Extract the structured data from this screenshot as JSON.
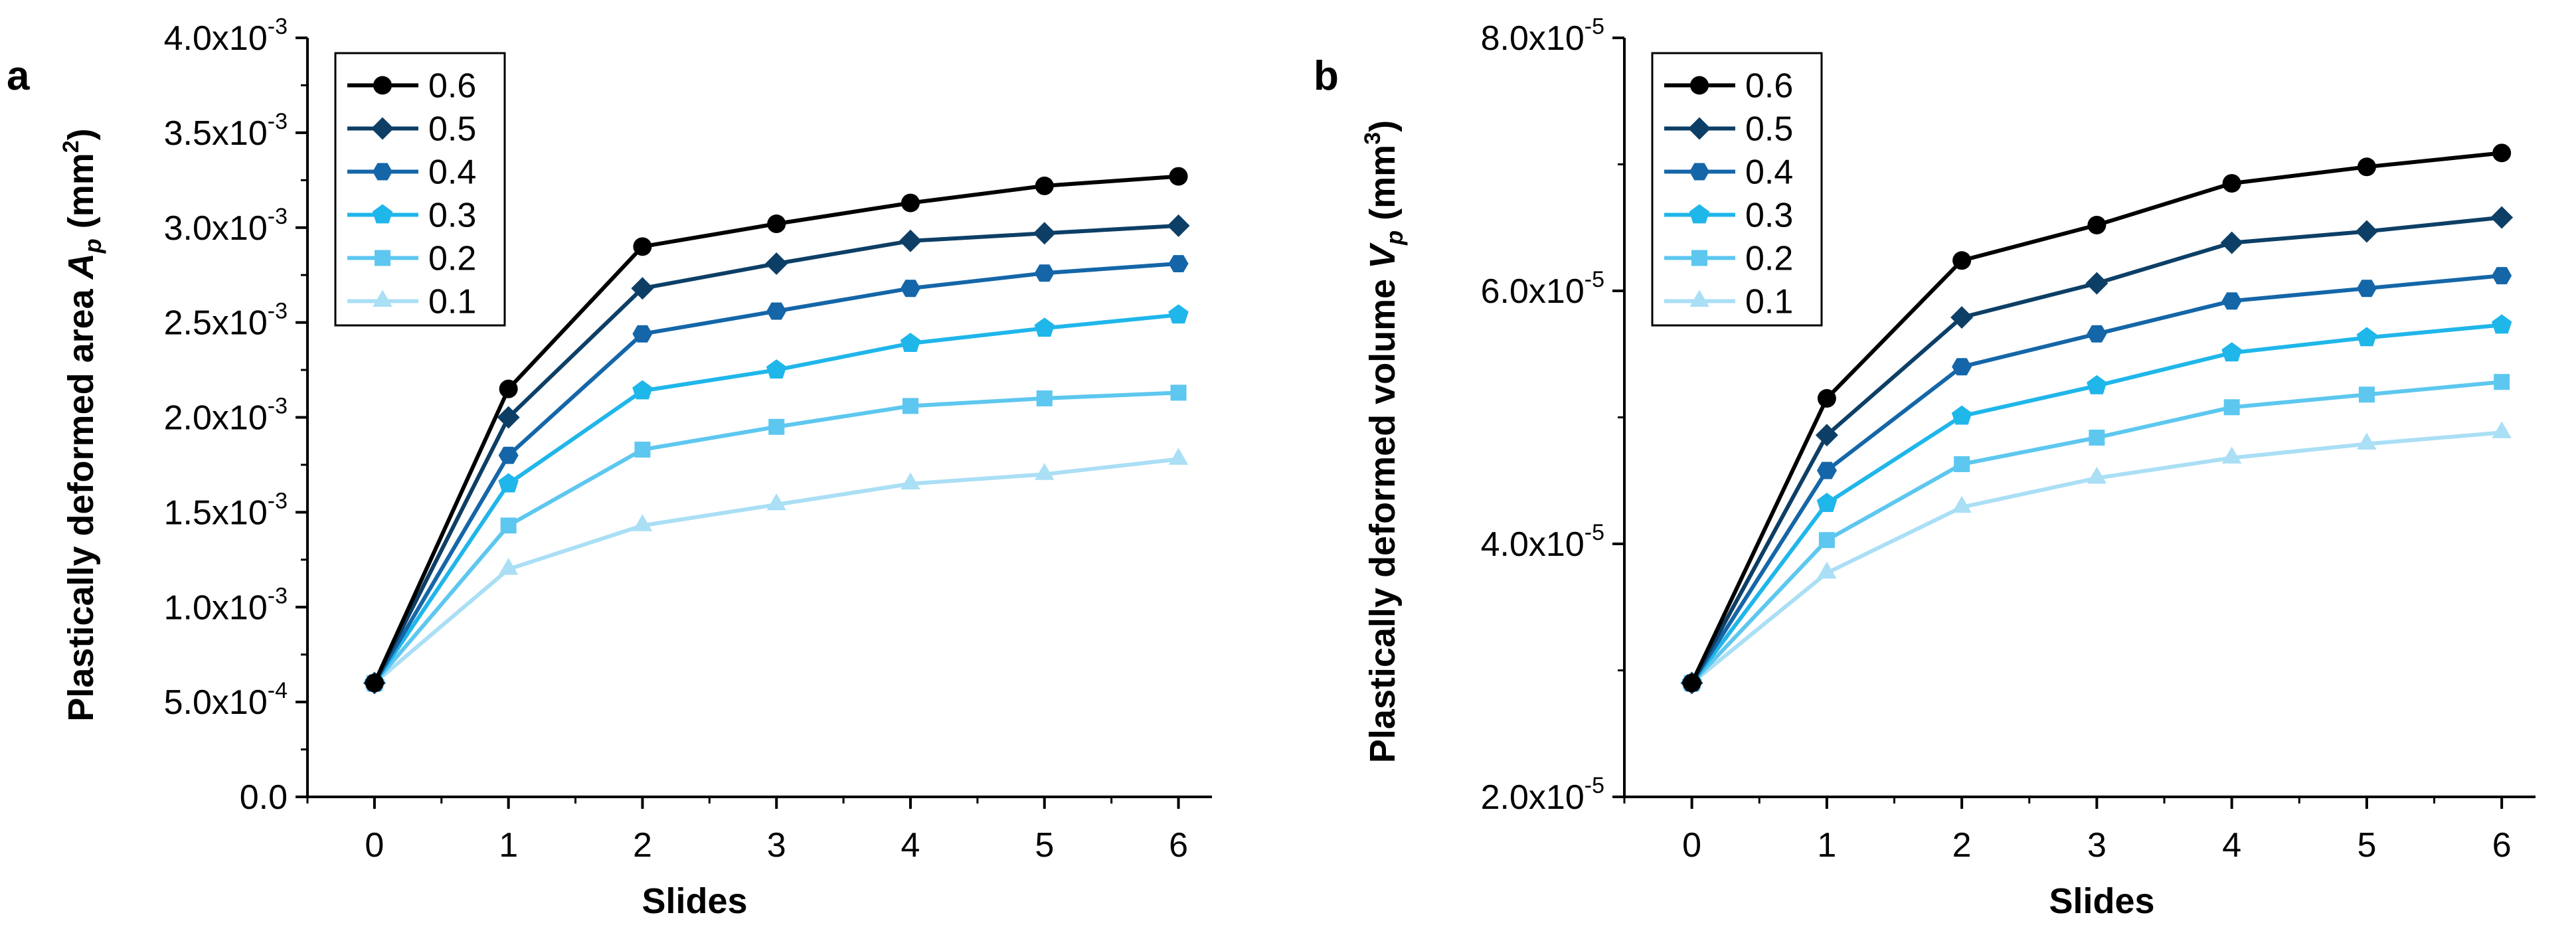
{
  "chart_data": [
    {
      "type": "line",
      "panel_label": "a",
      "xlabel": "Slides",
      "ylabel": {
        "prefix": "Plastically deformed area ",
        "symbol": "A",
        "subscript": "p",
        "unit_open": " (mm",
        "unit_power": "2",
        "unit_close": ")"
      },
      "x": [
        0,
        1,
        2,
        3,
        4,
        5,
        6
      ],
      "xlim": [
        -0.5,
        6.25
      ],
      "ylim": [
        0,
        0.004
      ],
      "y_ticks": [
        {
          "value": 0,
          "mantissa": "0.0",
          "exponent": ""
        },
        {
          "value": 0.0005,
          "mantissa": "5.0x10",
          "exponent": "-4"
        },
        {
          "value": 0.001,
          "mantissa": "1.0x10",
          "exponent": "-3"
        },
        {
          "value": 0.0015,
          "mantissa": "1.5x10",
          "exponent": "-3"
        },
        {
          "value": 0.002,
          "mantissa": "2.0x10",
          "exponent": "-3"
        },
        {
          "value": 0.0025,
          "mantissa": "2.5x10",
          "exponent": "-3"
        },
        {
          "value": 0.003,
          "mantissa": "3.0x10",
          "exponent": "-3"
        },
        {
          "value": 0.0035,
          "mantissa": "3.5x10",
          "exponent": "-3"
        },
        {
          "value": 0.004,
          "mantissa": "4.0x10",
          "exponent": "-3"
        }
      ],
      "legend_position": "top-left",
      "series": [
        {
          "name": "0.6",
          "marker": "circle",
          "color": "#000000",
          "values": [
            0.0006,
            0.00215,
            0.0029,
            0.00302,
            0.00313,
            0.00322,
            0.00327
          ]
        },
        {
          "name": "0.5",
          "marker": "diamond",
          "color": "#0d3f66",
          "values": [
            0.0006,
            0.002,
            0.00268,
            0.00281,
            0.00293,
            0.00297,
            0.00301
          ]
        },
        {
          "name": "0.4",
          "marker": "hexagon",
          "color": "#1466a8",
          "values": [
            0.0006,
            0.0018,
            0.00244,
            0.00256,
            0.00268,
            0.00276,
            0.00281
          ]
        },
        {
          "name": "0.3",
          "marker": "pentagon",
          "color": "#1fb6ea",
          "values": [
            0.0006,
            0.00165,
            0.00214,
            0.00225,
            0.00239,
            0.00247,
            0.00254
          ]
        },
        {
          "name": "0.2",
          "marker": "square",
          "color": "#5dc7ef",
          "values": [
            0.0006,
            0.00143,
            0.00183,
            0.00195,
            0.00206,
            0.0021,
            0.00213
          ]
        },
        {
          "name": "0.1",
          "marker": "triangle",
          "color": "#aadff5",
          "values": [
            0.0006,
            0.0012,
            0.00143,
            0.00154,
            0.00165,
            0.0017,
            0.00178
          ]
        }
      ]
    },
    {
      "type": "line",
      "panel_label": "b",
      "xlabel": "Slides",
      "ylabel": {
        "prefix": "Plastically deformed volume ",
        "symbol": "V",
        "subscript": "p",
        "unit_open": " (mm",
        "unit_power": "3",
        "unit_close": ")"
      },
      "x": [
        0,
        1,
        2,
        3,
        4,
        5,
        6
      ],
      "xlim": [
        -0.5,
        6.25
      ],
      "ylim": [
        2e-05,
        8e-05
      ],
      "y_ticks": [
        {
          "value": 2e-05,
          "mantissa": "2.0x10",
          "exponent": "-5"
        },
        {
          "value": 4e-05,
          "mantissa": "4.0x10",
          "exponent": "-5"
        },
        {
          "value": 6e-05,
          "mantissa": "6.0x10",
          "exponent": "-5"
        },
        {
          "value": 8e-05,
          "mantissa": "8.0x10",
          "exponent": "-5"
        }
      ],
      "legend_position": "top-left",
      "series": [
        {
          "name": "0.6",
          "marker": "circle",
          "color": "#000000",
          "values": [
            2.9e-05,
            5.15e-05,
            6.24e-05,
            6.52e-05,
            6.85e-05,
            6.98e-05,
            7.09e-05
          ]
        },
        {
          "name": "0.5",
          "marker": "diamond",
          "color": "#0d3f66",
          "values": [
            2.9e-05,
            4.86e-05,
            5.79e-05,
            6.06e-05,
            6.38e-05,
            6.47e-05,
            6.58e-05
          ]
        },
        {
          "name": "0.4",
          "marker": "hexagon",
          "color": "#1466a8",
          "values": [
            2.9e-05,
            4.58e-05,
            5.4e-05,
            5.66e-05,
            5.92e-05,
            6.02e-05,
            6.12e-05
          ]
        },
        {
          "name": "0.3",
          "marker": "pentagon",
          "color": "#1fb6ea",
          "values": [
            2.9e-05,
            4.32e-05,
            5.01e-05,
            5.25e-05,
            5.51e-05,
            5.63e-05,
            5.73e-05
          ]
        },
        {
          "name": "0.2",
          "marker": "square",
          "color": "#5dc7ef",
          "values": [
            2.9e-05,
            4.03e-05,
            4.63e-05,
            4.84e-05,
            5.08e-05,
            5.18e-05,
            5.28e-05
          ]
        },
        {
          "name": "0.1",
          "marker": "triangle",
          "color": "#aadff5",
          "values": [
            2.9e-05,
            3.77e-05,
            4.29e-05,
            4.52e-05,
            4.68e-05,
            4.79e-05,
            4.88e-05
          ]
        }
      ]
    }
  ]
}
